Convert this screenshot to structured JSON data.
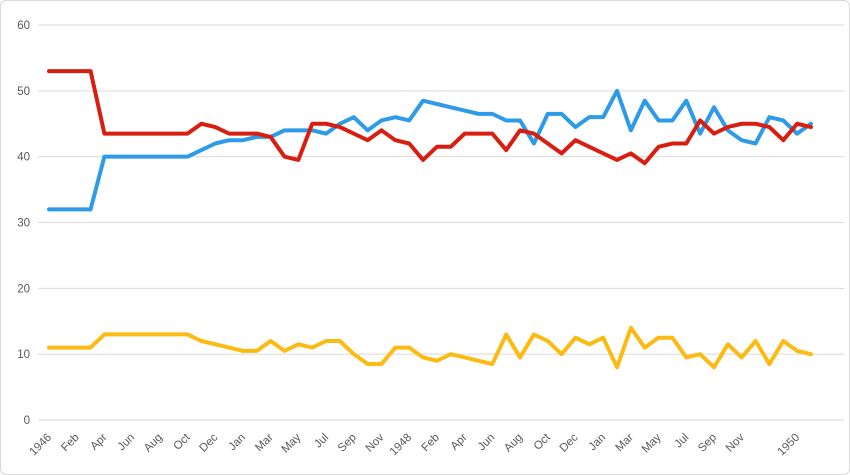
{
  "chart_data": {
    "type": "line",
    "title": "",
    "xlabel": "",
    "ylabel": "",
    "legend": "none",
    "grid": "horizontal",
    "ylim": [
      0,
      60
    ],
    "y_ticks": [
      0,
      10,
      20,
      30,
      40,
      50,
      60
    ],
    "x_tick_labels": [
      "1946",
      "",
      "Feb",
      "",
      "Apr",
      "",
      "Jun",
      "",
      "Aug",
      "",
      "Oct",
      "",
      "Dec",
      "",
      "Jan",
      "",
      "Mar",
      "",
      "May",
      "",
      "Jul",
      "",
      "Sep",
      "",
      "Nov",
      "",
      "1948",
      "",
      "Feb",
      "",
      "Apr",
      "",
      "Jun",
      "",
      "Aug",
      "",
      "Oct",
      "",
      "Dec",
      "",
      "Jan",
      "",
      "Mar",
      "",
      "May",
      "",
      "Jul",
      "",
      "Sep",
      "",
      "Nov",
      "",
      "",
      "",
      "1950",
      ""
    ],
    "axis_label_color": "#595959",
    "gridline_color": "#d9d9d9",
    "series": [
      {
        "name": "blue-line",
        "color": "#2d9be8",
        "values": [
          32,
          32,
          32,
          32,
          40,
          40,
          40,
          40,
          40,
          40,
          40,
          41,
          42,
          42.5,
          42.5,
          43,
          43,
          44,
          44,
          44,
          43.5,
          45,
          46,
          44,
          45.5,
          46,
          45.5,
          48.5,
          48,
          47.5,
          47,
          46.5,
          46.5,
          45.5,
          45.5,
          42,
          46.5,
          46.5,
          44.5,
          46,
          46,
          50,
          44,
          48.5,
          45.5,
          45.5,
          48.5,
          43.5,
          47.5,
          44,
          42.5,
          42,
          46,
          45.5,
          43.5,
          45
        ]
      },
      {
        "name": "red-line",
        "color": "#d81e10",
        "values": [
          53,
          53,
          53,
          53,
          43.5,
          43.5,
          43.5,
          43.5,
          43.5,
          43.5,
          43.5,
          45,
          44.5,
          43.5,
          43.5,
          43.5,
          43,
          40,
          39.5,
          45,
          45,
          44.5,
          43.5,
          42.5,
          44,
          42.5,
          42,
          39.5,
          41.5,
          41.5,
          43.5,
          43.5,
          43.5,
          41,
          44,
          43.5,
          42,
          40.5,
          42.5,
          41.5,
          40.5,
          39.5,
          40.5,
          39,
          41.5,
          42,
          42,
          45.5,
          43.5,
          44.5,
          45,
          45,
          44.5,
          42.5,
          45,
          44.5
        ]
      },
      {
        "name": "yellow-line",
        "color": "#fcbb13",
        "values": [
          11,
          11,
          11,
          11,
          13,
          13,
          13,
          13,
          13,
          13,
          13,
          12,
          11.5,
          11,
          10.5,
          10.5,
          12,
          10.5,
          11.5,
          11,
          12,
          12,
          10,
          8.5,
          8.5,
          11,
          11,
          9.5,
          9,
          10,
          9.5,
          9,
          8.5,
          13,
          9.5,
          13,
          12,
          10,
          12.5,
          11.5,
          12.5,
          8,
          14,
          11,
          12.5,
          12.5,
          9.5,
          10,
          8,
          11.5,
          9.5,
          12,
          8.5,
          12,
          10.5,
          10
        ]
      }
    ]
  }
}
